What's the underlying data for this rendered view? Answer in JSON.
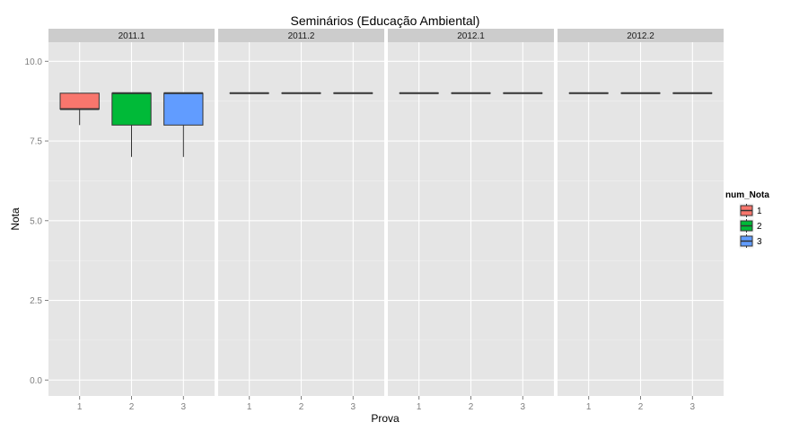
{
  "chart_data": {
    "type": "boxplot",
    "title": "Seminários (Educação Ambiental)",
    "xlabel": "Prova",
    "ylabel": "Nota",
    "ylim": [
      -0.5,
      10.6
    ],
    "yticks": [
      0.0,
      2.5,
      5.0,
      7.5,
      10.0
    ],
    "ytick_labels": [
      "0.0",
      "2.5",
      "5.0",
      "7.5",
      "10.0"
    ],
    "categories": [
      "1",
      "2",
      "3"
    ],
    "grid": true,
    "legend": {
      "title": "num_Nota",
      "position": "right",
      "entries": [
        {
          "label": "1",
          "color": "#F8766D"
        },
        {
          "label": "2",
          "color": "#00BA38"
        },
        {
          "label": "3",
          "color": "#619CFF"
        }
      ]
    },
    "panels": [
      {
        "strip": "2011.1",
        "boxes": [
          {
            "x": "1",
            "min": 8.0,
            "q1": 8.5,
            "median": 8.5,
            "q3": 9.0,
            "max": 9.0
          },
          {
            "x": "2",
            "min": 7.0,
            "q1": 8.0,
            "median": 9.0,
            "q3": 9.0,
            "max": 9.0
          },
          {
            "x": "3",
            "min": 7.0,
            "q1": 8.0,
            "median": 9.0,
            "q3": 9.0,
            "max": 9.0
          }
        ]
      },
      {
        "strip": "2011.2",
        "boxes": [
          {
            "x": "1",
            "min": 9.0,
            "q1": 9.0,
            "median": 9.0,
            "q3": 9.0,
            "max": 9.0
          },
          {
            "x": "2",
            "min": 9.0,
            "q1": 9.0,
            "median": 9.0,
            "q3": 9.0,
            "max": 9.0
          },
          {
            "x": "3",
            "min": 9.0,
            "q1": 9.0,
            "median": 9.0,
            "q3": 9.0,
            "max": 9.0
          }
        ]
      },
      {
        "strip": "2012.1",
        "boxes": [
          {
            "x": "1",
            "min": 9.0,
            "q1": 9.0,
            "median": 9.0,
            "q3": 9.0,
            "max": 9.0
          },
          {
            "x": "2",
            "min": 9.0,
            "q1": 9.0,
            "median": 9.0,
            "q3": 9.0,
            "max": 9.0
          },
          {
            "x": "3",
            "min": 9.0,
            "q1": 9.0,
            "median": 9.0,
            "q3": 9.0,
            "max": 9.0
          }
        ]
      },
      {
        "strip": "2012.2",
        "boxes": [
          {
            "x": "1",
            "min": 9.0,
            "q1": 9.0,
            "median": 9.0,
            "q3": 9.0,
            "max": 9.0
          },
          {
            "x": "2",
            "min": 9.0,
            "q1": 9.0,
            "median": 9.0,
            "q3": 9.0,
            "max": 9.0
          },
          {
            "x": "3",
            "min": 9.0,
            "q1": 9.0,
            "median": 9.0,
            "q3": 9.0,
            "max": 9.0
          }
        ]
      }
    ]
  }
}
